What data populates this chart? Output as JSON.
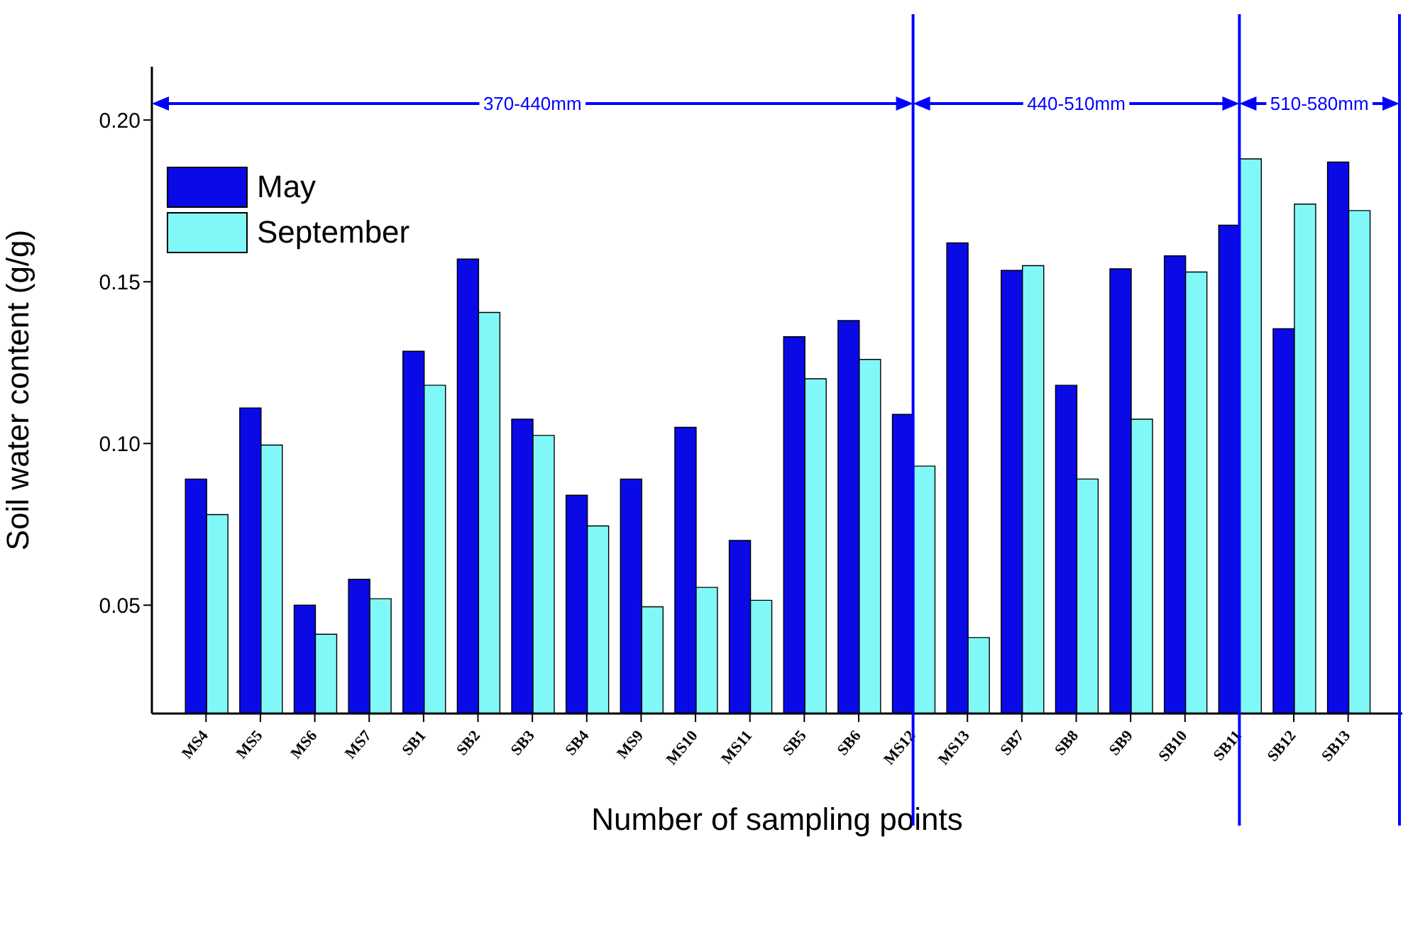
{
  "chart_data": {
    "type": "bar",
    "xlabel": "Number of sampling points",
    "ylabel": "Soil water content (g/g)",
    "categories": [
      "MS4",
      "MS5",
      "MS6",
      "MS7",
      "SB1",
      "SB2",
      "SB3",
      "SB4",
      "MS9",
      "MS10",
      "MS11",
      "SB5",
      "SB6",
      "MS12",
      "MS13",
      "SB7",
      "SB8",
      "SB9",
      "SB10",
      "SB11",
      "SB12",
      "SB13"
    ],
    "series": [
      {
        "name": "May",
        "color": "#0a0ae6",
        "values": [
          0.089,
          0.111,
          0.05,
          0.058,
          0.1285,
          0.157,
          0.1075,
          0.084,
          0.089,
          0.105,
          0.07,
          0.133,
          0.138,
          0.109,
          0.162,
          0.1535,
          0.118,
          0.154,
          0.158,
          0.1675,
          0.1355,
          0.187
        ]
      },
      {
        "name": "September",
        "color": "#80f8f8",
        "values": [
          0.078,
          0.0995,
          0.041,
          0.052,
          0.118,
          0.1405,
          0.1025,
          0.0745,
          0.0495,
          0.0555,
          0.0515,
          0.12,
          0.126,
          0.093,
          0.04,
          0.155,
          0.089,
          0.1075,
          0.153,
          0.188,
          0.174,
          0.172
        ]
      }
    ],
    "ylim": [
      0.0165,
      0.2165
    ],
    "yticks": [
      {
        "value": 0.05,
        "label": "0.05"
      },
      {
        "value": 0.1,
        "label": "0.10"
      },
      {
        "value": 0.15,
        "label": "0.15"
      },
      {
        "value": 0.2,
        "label": "0.20"
      }
    ],
    "ref_lines": [
      {
        "axis": "x",
        "value": "MS12",
        "color": "#0000ff"
      },
      {
        "axis": "x",
        "value": "SB11",
        "color": "#0000ff"
      }
    ],
    "annotations": [
      "370-440mm",
      "440-510mm",
      "510-580mm"
    ],
    "grid": false,
    "legend": "top left"
  }
}
